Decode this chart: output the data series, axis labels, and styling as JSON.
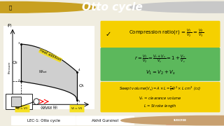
{
  "title": "Otto cycle",
  "bg_color": "#f0ede0",
  "header_bg": "#e07800",
  "header_text_color": "#ffffff",
  "header_fontsize": 11,
  "footer_bg": "#e07800",
  "footer_text1": "LEC-1: Otto cycle",
  "footer_text2": "Akhil Gursinol",
  "box1_bg": "#f5d000",
  "box2_bg": "#5cb85c",
  "box3_bg": "#f5d000",
  "shade_color": "#b0b0b0",
  "label_q2": "$Q_2$",
  "label_q1": "$Q_1$",
  "label_net_work": "$W_{net}$"
}
